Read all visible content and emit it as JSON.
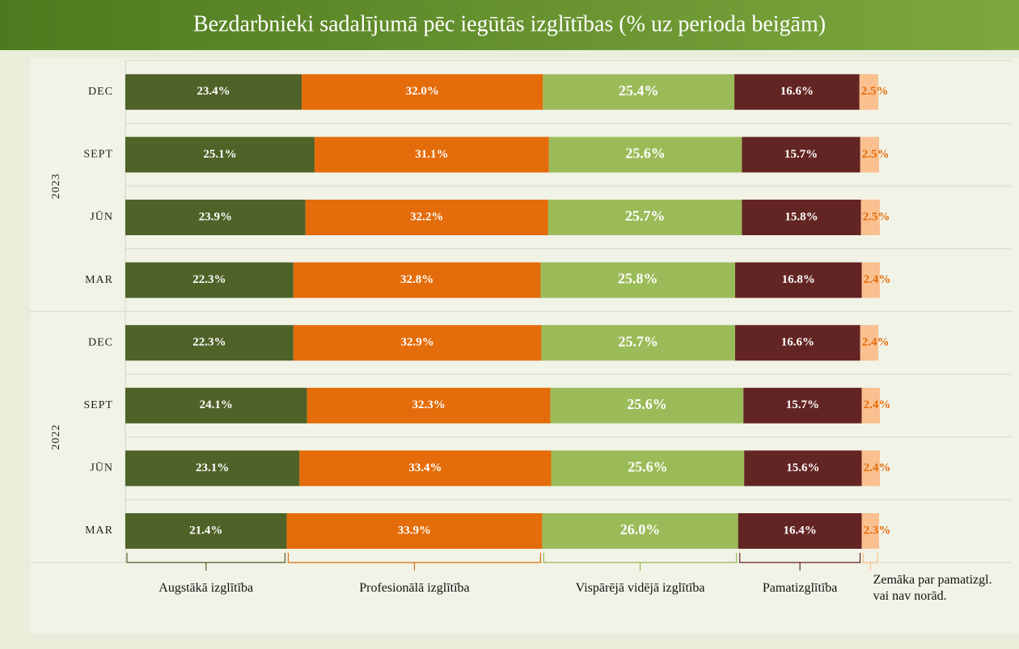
{
  "chart_data": {
    "type": "stacked_barh",
    "title": "Bezdarbnieki sadalījumā pēc iegūtās izglītības (% uz perioda beigām)",
    "groups": [
      {
        "name": "2023",
        "categories": [
          "DEC",
          "SEPT",
          "JŪN",
          "MAR"
        ]
      },
      {
        "name": "2022",
        "categories": [
          "DEC",
          "SEPT",
          "JŪN",
          "MAR"
        ]
      }
    ],
    "xlim": [
      0,
      100
    ],
    "series": [
      {
        "name": "Augstākā izglītība",
        "color": "#4f6228",
        "values": [
          23.4,
          25.1,
          23.9,
          22.3,
          22.3,
          24.1,
          23.1,
          21.4
        ],
        "value_labels": [
          "23.4%",
          "25.1%",
          "23.9%",
          "22.3%",
          "22.3%",
          "24.1%",
          "23.1%",
          "21.4%"
        ]
      },
      {
        "name": "Profesionālā izglītība",
        "color": "#e46c0a",
        "values": [
          32.0,
          31.1,
          32.2,
          32.8,
          32.9,
          32.3,
          33.4,
          33.9
        ],
        "value_labels": [
          "32.0%",
          "31.1%",
          "32.2%",
          "32.8%",
          "32.9%",
          "32.3%",
          "33.4%",
          "33.9%"
        ]
      },
      {
        "name": "Vispārējā vidējā izglītība",
        "color": "#9bbb59",
        "values": [
          25.4,
          25.6,
          25.7,
          25.8,
          25.7,
          25.6,
          25.6,
          26.0
        ],
        "value_labels": [
          "25.4%",
          "25.6%",
          "25.7%",
          "25.8%",
          "25.7%",
          "25.6%",
          "25.6%",
          "26.0%"
        ]
      },
      {
        "name": "Pamatizglītība",
        "color": "#632523",
        "values": [
          16.6,
          15.7,
          15.8,
          16.8,
          16.6,
          15.7,
          15.6,
          16.4
        ],
        "value_labels": [
          "16.6%",
          "15.7%",
          "15.8%",
          "16.8%",
          "16.6%",
          "15.7%",
          "15.6%",
          "16.4%"
        ]
      },
      {
        "name": "Zemāka par pamatizgl. vai nav norād.",
        "color": "#fac090",
        "values": [
          2.5,
          2.5,
          2.5,
          2.4,
          2.4,
          2.4,
          2.4,
          2.3
        ],
        "value_labels": [
          "2.5%",
          "2.5%",
          "2.5%",
          "2.4%",
          "2.4%",
          "2.4%",
          "2.4%",
          "2.3%"
        ]
      }
    ]
  }
}
